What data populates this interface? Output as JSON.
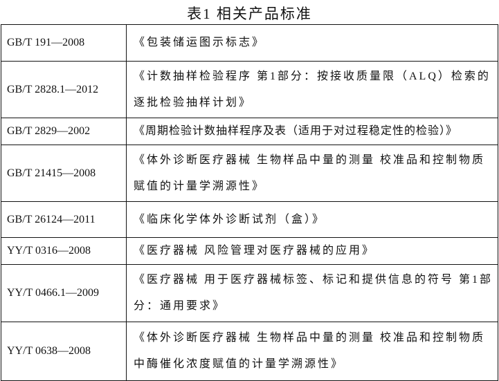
{
  "title": "表1 相关产品标准",
  "rows": [
    {
      "code": "GB/T 191—2008",
      "name": "《包装储运图示标志》"
    },
    {
      "code": "GB/T 2828.1—2012",
      "name": "《计数抽样检验程序 第1部分：按接收质量限（ALQ）检索的逐批检验抽样计划》"
    },
    {
      "code": "GB/T 2829—2002",
      "name": "《周期检验计数抽样程序及表（适用于对过程稳定性的检验）》"
    },
    {
      "code": "GB/T 21415—2008",
      "name": "《体外诊断医疗器械 生物样品中量的测量 校准品和控制物质赋值的计量学溯源性》"
    },
    {
      "code": "GB/T 26124—2011",
      "name": "《临床化学体外诊断试剂（盒）》"
    },
    {
      "code": "YY/T 0316—2008",
      "name": "《医疗器械 风险管理对医疗器械的应用》"
    },
    {
      "code": "YY/T 0466.1—2009",
      "name": "《医疗器械 用于医疗器械标签、标记和提供信息的符号 第1部分：通用要求》"
    },
    {
      "code": "YY/T 0638—2008",
      "name": "《体外诊断医疗器械 生物样品中量的测量 校准品和控制物质中酶催化浓度赋值的计量学溯源性》"
    }
  ]
}
